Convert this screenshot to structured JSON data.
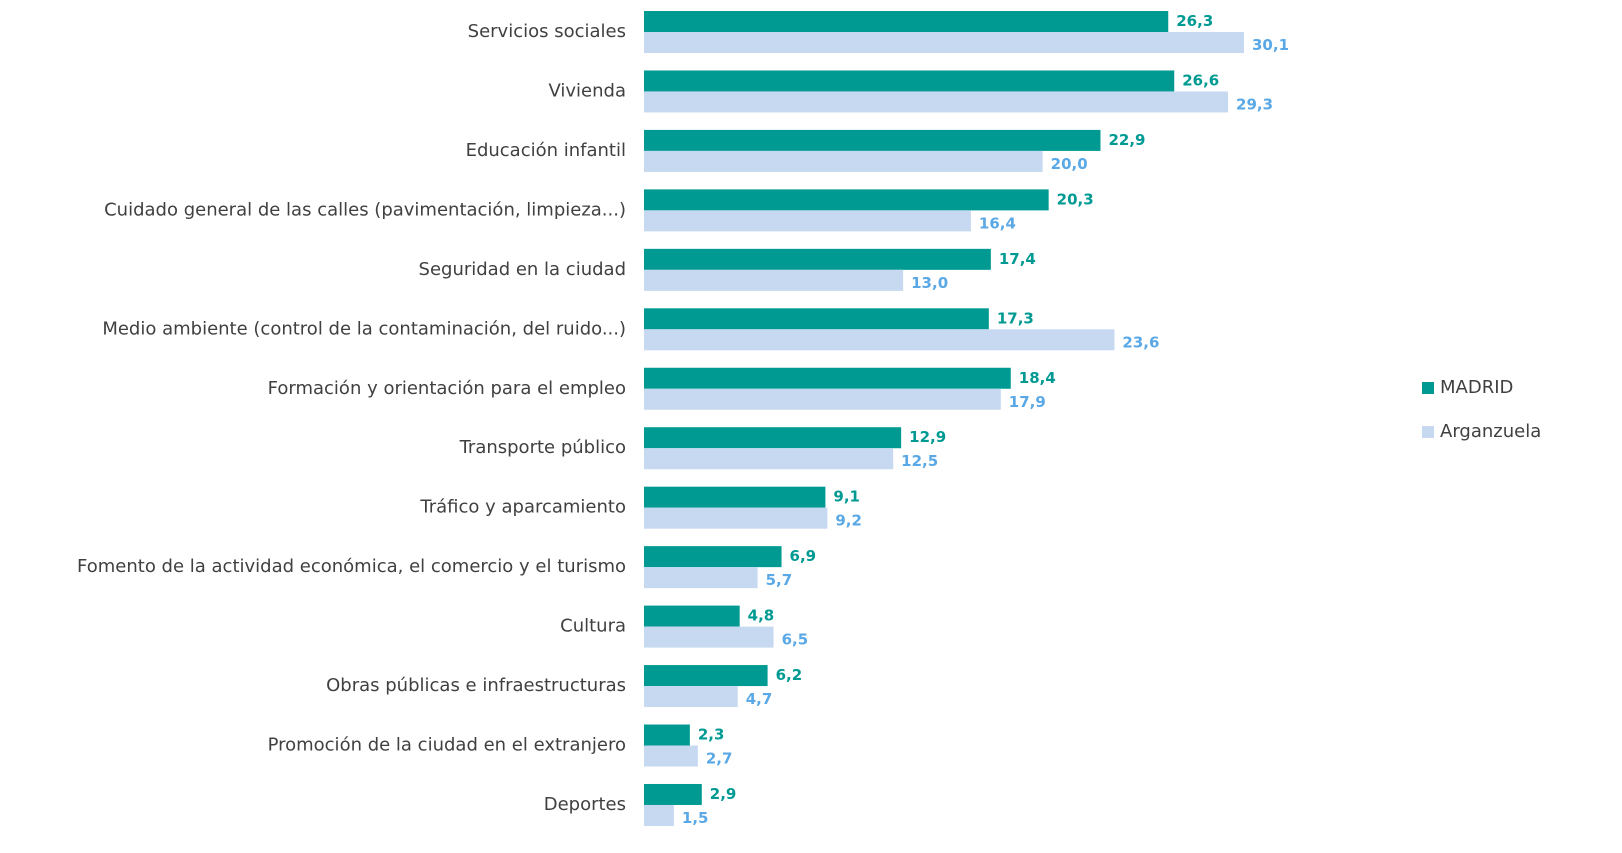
{
  "chart_data": {
    "type": "bar",
    "orientation": "horizontal",
    "categories": [
      "Servicios sociales",
      "Vivienda",
      "Educación infantil",
      "Cuidado general de las calles (pavimentación, limpieza...)",
      "Seguridad en la ciudad",
      "Medio ambiente (control de la contaminación, del ruido...)",
      "Formación y orientación para el empleo",
      "Transporte público",
      "Tráfico y aparcamiento",
      "Fomento de la actividad económica, el comercio y el turismo",
      "Cultura",
      "Obras públicas e infraestructuras",
      "Promoción de la ciudad en el extranjero",
      "Deportes"
    ],
    "series": [
      {
        "name": "MADRID",
        "color": "#009a93",
        "label_color": "#009a93",
        "values": [
          26.3,
          26.6,
          22.9,
          20.3,
          17.4,
          17.3,
          18.4,
          12.9,
          9.1,
          6.9,
          4.8,
          6.2,
          2.3,
          2.9
        ],
        "value_labels": [
          "26,3",
          "26,6",
          "22,9",
          "20,3",
          "17,4",
          "17,3",
          "18,4",
          "12,9",
          "9,1",
          "6,9",
          "4,8",
          "6,2",
          "2,3",
          "2,9"
        ]
      },
      {
        "name": "Arganzuela",
        "color": "#c6d9f1",
        "label_color": "#5aa9e6",
        "values": [
          30.1,
          29.3,
          20.0,
          16.4,
          13.0,
          23.6,
          17.9,
          12.5,
          9.2,
          5.7,
          6.5,
          4.7,
          2.7,
          1.5
        ],
        "value_labels": [
          "30,1",
          "29,3",
          "20,0",
          "16,4",
          "13,0",
          "23,6",
          "17,9",
          "12,5",
          "9,2",
          "5,7",
          "6,5",
          "4,7",
          "2,7",
          "1,5"
        ]
      }
    ],
    "legend": "right"
  }
}
